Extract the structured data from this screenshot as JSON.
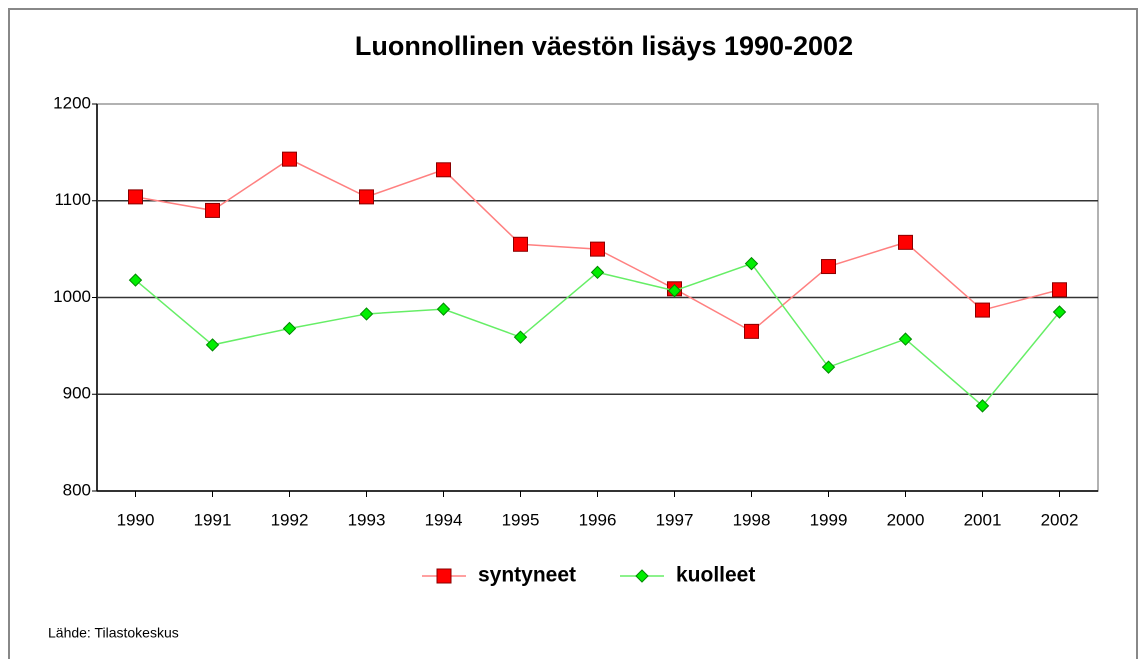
{
  "chart_data": {
    "type": "line",
    "title": "Luonnollinen väestön lisäys 1990-2002",
    "source": "Lähde: Tilastokeskus",
    "categories": [
      "1990",
      "1991",
      "1992",
      "1993",
      "1994",
      "1995",
      "1996",
      "1997",
      "1998",
      "1999",
      "2000",
      "2001",
      "2002"
    ],
    "series": [
      {
        "name": "syntyneet",
        "color": "#ff0000",
        "line_color": "#ff8080",
        "marker": "square",
        "values": [
          1104,
          1090,
          1143,
          1104,
          1132,
          1055,
          1050,
          1009,
          965,
          1032,
          1057,
          987,
          1008
        ]
      },
      {
        "name": "kuolleet",
        "color": "#00ee00",
        "line_color": "#66ee66",
        "marker": "diamond",
        "values": [
          1018,
          951,
          968,
          983,
          988,
          959,
          1026,
          1007,
          1035,
          928,
          957,
          888,
          985
        ]
      }
    ],
    "ylim": [
      800,
      1200
    ],
    "yticks": [
      800,
      900,
      1000,
      1100,
      1200
    ],
    "grid": true,
    "legend": "bottom"
  }
}
